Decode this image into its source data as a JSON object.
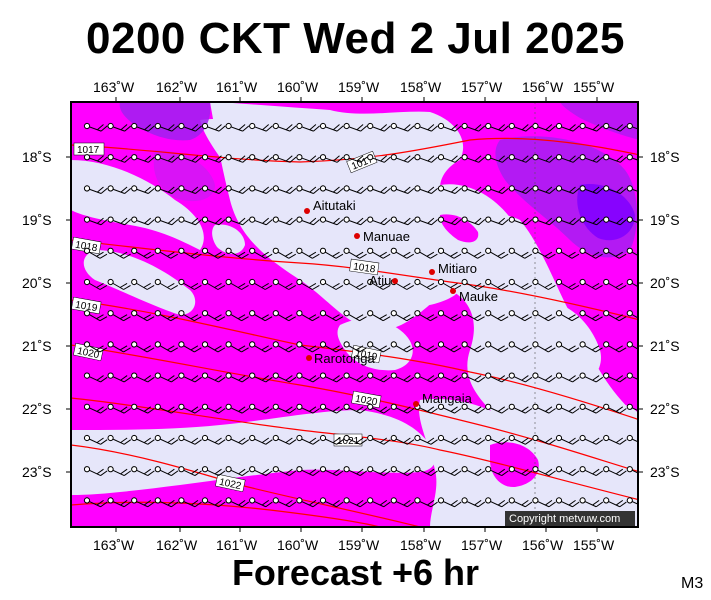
{
  "title": "0200 CKT Wed 2 Jul 2025",
  "footer": "Forecast +6 hr",
  "corner_code": "M3",
  "copyright": "Copyright metvuw.com",
  "colors": {
    "land_light": "#e6e6fa",
    "rain_magenta": "#ff00ff",
    "rain_purple": "#a020f0",
    "rain_violet": "#7f00ff",
    "isobar": "#ff0000",
    "place_marker": "#dd0000"
  },
  "map": {
    "lon_ticks": [
      "163˚W",
      "162˚W",
      "161˚W",
      "160˚W",
      "159˚W",
      "158˚W",
      "157˚W",
      "156˚W",
      "155˚W"
    ],
    "lat_ticks": [
      "18˚S",
      "19˚S",
      "20˚S",
      "21˚S",
      "22˚S",
      "23˚S"
    ],
    "places": [
      {
        "name": "Aitutaki"
      },
      {
        "name": "Manuae"
      },
      {
        "name": "Mitiaro"
      },
      {
        "name": "Atiu"
      },
      {
        "name": "Mauke"
      },
      {
        "name": "Rarotonga"
      },
      {
        "name": "Mangaia"
      }
    ],
    "isobar_labels": [
      "1017",
      "1017",
      "1018",
      "1018",
      "1019",
      "1019",
      "1020",
      "1020",
      "1021",
      "1022"
    ]
  }
}
